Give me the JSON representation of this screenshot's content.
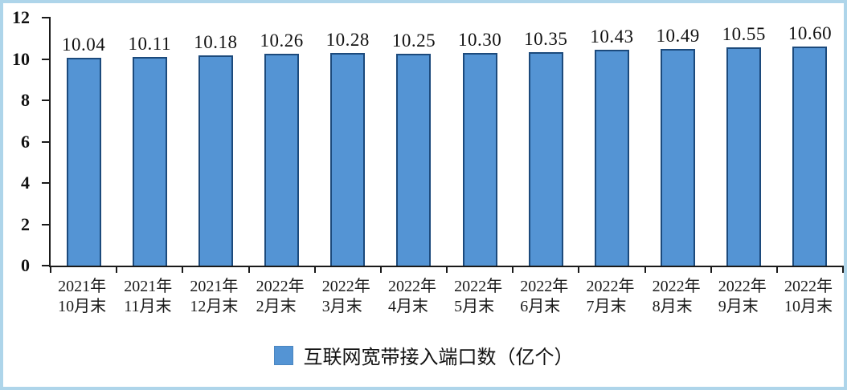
{
  "chart_data": {
    "type": "bar",
    "title": "",
    "legend": {
      "label": "互联网宽带接入端口数（亿个）",
      "position": "bottom-center"
    },
    "categories": [
      {
        "line1": "2021年",
        "line2": "10月末"
      },
      {
        "line1": "2021年",
        "line2": "11月末"
      },
      {
        "line1": "2021年",
        "line2": "12月末"
      },
      {
        "line1": "2022年",
        "line2": "2月末"
      },
      {
        "line1": "2022年",
        "line2": "3月末"
      },
      {
        "line1": "2022年",
        "line2": "4月末"
      },
      {
        "line1": "2022年",
        "line2": "5月末"
      },
      {
        "line1": "2022年",
        "line2": "6月末"
      },
      {
        "line1": "2022年",
        "line2": "7月末"
      },
      {
        "line1": "2022年",
        "line2": "8月末"
      },
      {
        "line1": "2022年",
        "line2": "9月末"
      },
      {
        "line1": "2022年",
        "line2": "10月末"
      }
    ],
    "values": [
      10.04,
      10.11,
      10.18,
      10.26,
      10.28,
      10.25,
      10.3,
      10.35,
      10.43,
      10.49,
      10.55,
      10.6
    ],
    "value_labels": [
      "10.04",
      "10.11",
      "10.18",
      "10.26",
      "10.28",
      "10.25",
      "10.30",
      "10.35",
      "10.43",
      "10.49",
      "10.55",
      "10.60"
    ],
    "xlabel": "",
    "ylabel": "",
    "ylim": [
      0,
      12
    ],
    "yticks": [
      0,
      2,
      4,
      6,
      8,
      10,
      12
    ],
    "grid": false,
    "colors": {
      "bar_fill": "#5494d4",
      "bar_border": "#1c4a7c",
      "frame_border": "#aed5ea",
      "axis": "#1a1a1a",
      "text": "#111111"
    }
  }
}
